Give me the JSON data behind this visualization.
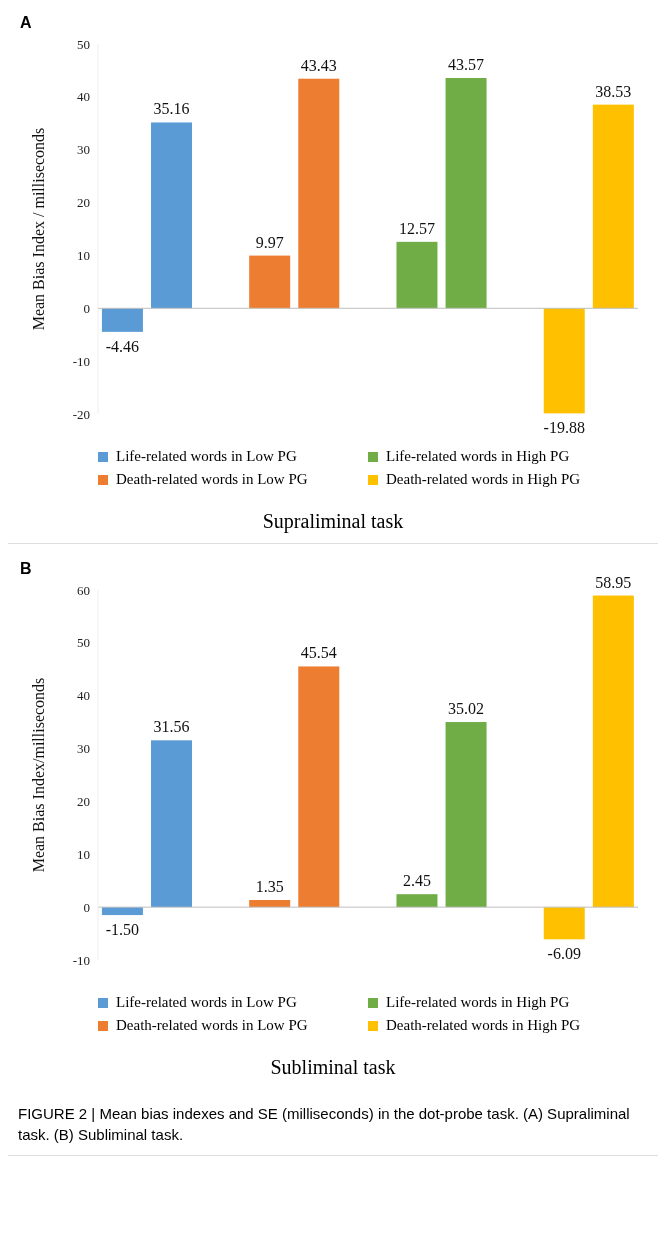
{
  "chart_data": [
    {
      "type": "bar",
      "title": "Supraliminal task",
      "ylabel": "Mean Bias Index / milliseconds",
      "annotations": [
        "A"
      ],
      "categories": [
        null,
        null,
        null,
        null,
        null,
        null,
        null,
        null,
        null,
        null,
        null
      ],
      "stacked": true,
      "legend": "bottom",
      "grid": false,
      "ref_lines": [
        {
          "axis": "y",
          "value": 0,
          "color": "#bfbfbf"
        }
      ],
      "ylim": [
        -20,
        50
      ],
      "yticks": [
        -20,
        -10,
        0,
        10,
        20,
        30,
        40,
        50
      ],
      "series": [
        {
          "name": "Life-related words in Low PG",
          "color": "#5b9bd5",
          "values": [
            -4.46,
            35.16,
            null,
            null,
            null,
            null,
            null,
            null,
            null,
            null,
            null
          ],
          "value_labels": [
            "-4.46",
            "35.16",
            null,
            null,
            null,
            null,
            null,
            null,
            null,
            null,
            null
          ]
        },
        {
          "name": "Death-related words in Low PG",
          "color": "#ed7d31",
          "values": [
            null,
            null,
            null,
            9.97,
            43.43,
            null,
            null,
            null,
            null,
            null,
            null
          ],
          "value_labels": [
            null,
            null,
            null,
            "9.97",
            "43.43",
            null,
            null,
            null,
            null,
            null,
            null
          ]
        },
        {
          "name": "Life-related words in High PG",
          "color": "#70ad47",
          "values": [
            null,
            null,
            null,
            null,
            null,
            null,
            12.57,
            43.57,
            null,
            null,
            null
          ],
          "value_labels": [
            null,
            null,
            null,
            null,
            null,
            null,
            "12.57",
            "43.57",
            null,
            null,
            null
          ]
        },
        {
          "name": "Death-related words in High PG",
          "color": "#ffc000",
          "values": [
            null,
            null,
            null,
            null,
            null,
            null,
            null,
            null,
            null,
            -19.88,
            38.53
          ],
          "value_labels": [
            null,
            null,
            null,
            null,
            null,
            null,
            null,
            null,
            null,
            "-19.88",
            "38.53"
          ]
        }
      ]
    },
    {
      "type": "bar",
      "title": "Subliminal task",
      "ylabel": "Mean Bias Index/milliseconds",
      "annotations": [
        "B",
        "FIGURE 2 | Mean bias indexes and SE (milliseconds) in the dot-probe task. (A) Supraliminal task. (B) Subliminal task."
      ],
      "categories": [
        null,
        null,
        null,
        null,
        null,
        null,
        null,
        null,
        null,
        null,
        null
      ],
      "stacked": true,
      "legend": "bottom",
      "grid": false,
      "ref_lines": [
        {
          "axis": "y",
          "value": 0,
          "color": "#bfbfbf"
        }
      ],
      "ylim": [
        -10,
        60
      ],
      "yticks": [
        -10,
        0,
        10,
        20,
        30,
        40,
        50,
        60
      ],
      "series": [
        {
          "name": "Life-related words in Low PG",
          "color": "#5b9bd5",
          "values": [
            -1.5,
            31.56,
            null,
            null,
            null,
            null,
            null,
            null,
            null,
            null,
            null
          ],
          "value_labels": [
            "-1.50",
            "31.56",
            null,
            null,
            null,
            null,
            null,
            null,
            null,
            null,
            null
          ]
        },
        {
          "name": "Death-related words in Low PG",
          "color": "#ed7d31",
          "values": [
            null,
            null,
            null,
            1.35,
            45.54,
            null,
            null,
            null,
            null,
            null,
            null
          ],
          "value_labels": [
            null,
            null,
            null,
            "1.35",
            "45.54",
            null,
            null,
            null,
            null,
            null,
            null
          ]
        },
        {
          "name": "Life-related words in High PG",
          "color": "#70ad47",
          "values": [
            null,
            null,
            null,
            null,
            null,
            null,
            2.45,
            35.02,
            null,
            null,
            null
          ],
          "value_labels": [
            null,
            null,
            null,
            null,
            null,
            null,
            "2.45",
            "35.02",
            null,
            null,
            null
          ]
        },
        {
          "name": "Death-related words in High PG",
          "color": "#ffc000",
          "values": [
            null,
            null,
            null,
            null,
            null,
            null,
            null,
            null,
            null,
            -6.09,
            58.95
          ],
          "value_labels": [
            null,
            null,
            null,
            null,
            null,
            null,
            null,
            null,
            null,
            "-6.09",
            "58.95"
          ]
        }
      ]
    }
  ]
}
